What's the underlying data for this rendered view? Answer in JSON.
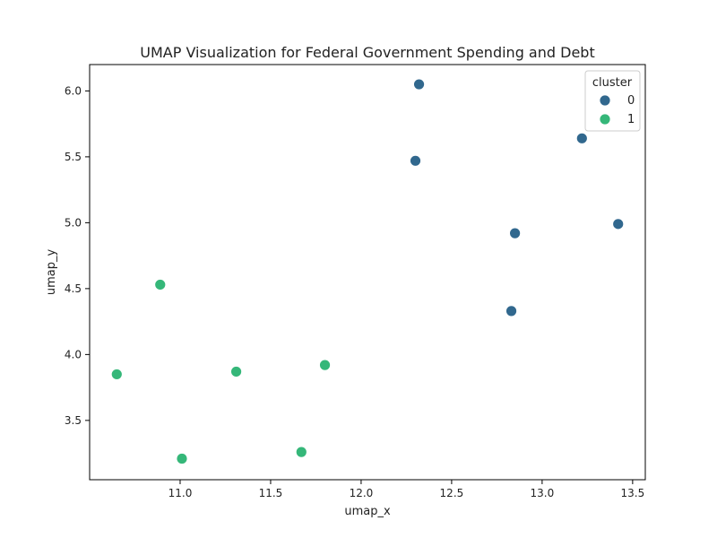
{
  "chart_data": {
    "type": "scatter",
    "title": "UMAP Visualization for Federal Government Spending and Debt",
    "xlabel": "umap_x",
    "ylabel": "umap_y",
    "xlim": [
      10.5,
      13.57
    ],
    "ylim": [
      3.05,
      6.2
    ],
    "xticks": [
      11.0,
      11.5,
      12.0,
      12.5,
      13.0,
      13.5
    ],
    "xtick_labels": [
      "11.0",
      "11.5",
      "12.0",
      "12.5",
      "13.0",
      "13.5"
    ],
    "yticks": [
      3.5,
      4.0,
      4.5,
      5.0,
      5.5,
      6.0
    ],
    "ytick_labels": [
      "3.5",
      "4.0",
      "4.5",
      "5.0",
      "5.5",
      "6.0"
    ],
    "grid": false,
    "legend": {
      "title": "cluster",
      "placement": "top-right"
    },
    "series": [
      {
        "name": "0",
        "color": "#31688e",
        "points": [
          {
            "x": 12.32,
            "y": 6.05
          },
          {
            "x": 12.3,
            "y": 5.47
          },
          {
            "x": 13.22,
            "y": 5.64
          },
          {
            "x": 12.85,
            "y": 4.92
          },
          {
            "x": 13.42,
            "y": 4.99
          },
          {
            "x": 12.83,
            "y": 4.33
          }
        ]
      },
      {
        "name": "1",
        "color": "#35b779",
        "points": [
          {
            "x": 10.89,
            "y": 4.53
          },
          {
            "x": 10.65,
            "y": 3.85
          },
          {
            "x": 11.31,
            "y": 3.87
          },
          {
            "x": 11.8,
            "y": 3.92
          },
          {
            "x": 11.01,
            "y": 3.21
          },
          {
            "x": 11.67,
            "y": 3.26
          }
        ]
      }
    ]
  }
}
